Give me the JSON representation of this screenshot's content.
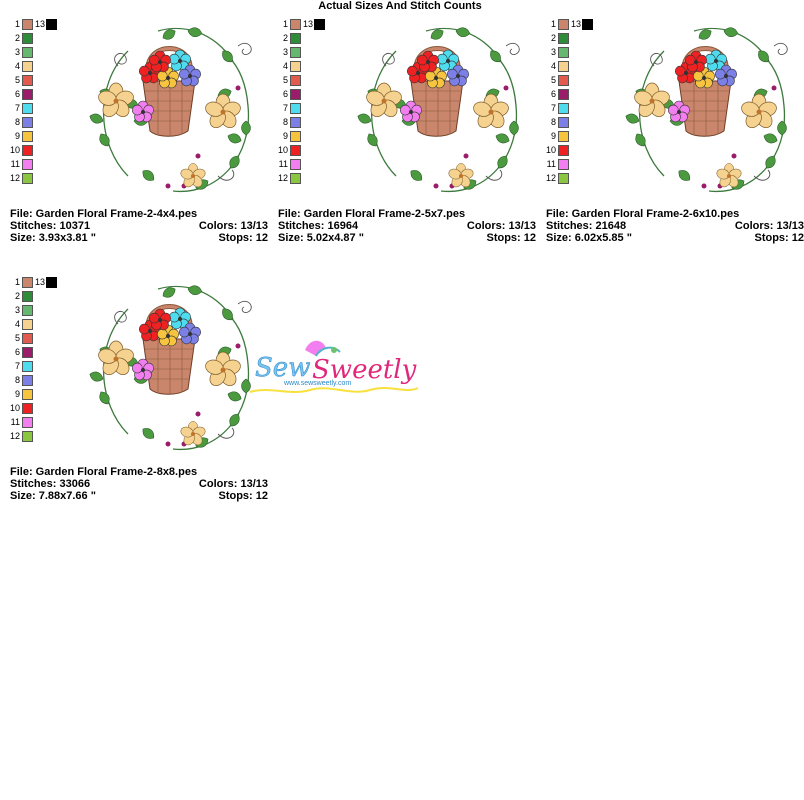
{
  "title": "Actual Sizes And Stitch Counts",
  "palette": {
    "numbers": [
      "1",
      "2",
      "3",
      "4",
      "5",
      "6",
      "7",
      "8",
      "9",
      "10",
      "11",
      "12"
    ],
    "colors": [
      "#c9866c",
      "#2e8b3a",
      "#66b870",
      "#f5d28f",
      "#e25b4f",
      "#9a1c6a",
      "#4fdcee",
      "#7b7fe6",
      "#f7c43f",
      "#ee2222",
      "#f27ef0",
      "#8ac640"
    ],
    "extra_number": "13",
    "extra_color": "#000000"
  },
  "panels": [
    {
      "file": "File: Garden Floral Frame-2-4x4.pes",
      "stitches": "Stitches: 10371",
      "colors": "Colors: 13/13",
      "size": "Size: 3.93x3.81 \"",
      "stops": "Stops: 12"
    },
    {
      "file": "File: Garden Floral Frame-2-5x7.pes",
      "stitches": "Stitches: 16964",
      "colors": "Colors: 13/13",
      "size": "Size: 5.02x4.87 \"",
      "stops": "Stops: 12"
    },
    {
      "file": "File: Garden Floral Frame-2-6x10.pes",
      "stitches": "Stitches: 21648",
      "colors": "Colors: 13/13",
      "size": "Size: 6.02x5.85 \"",
      "stops": "Stops: 12"
    },
    {
      "file": "File: Garden Floral Frame-2-8x8.pes",
      "stitches": "Stitches: 33066",
      "colors": "Colors: 13/13",
      "size": "Size: 7.88x7.66 \"",
      "stops": "Stops: 12"
    }
  ],
  "logo": {
    "name": "Sew Sweetly",
    "url": "www.sewsweetly.com"
  }
}
